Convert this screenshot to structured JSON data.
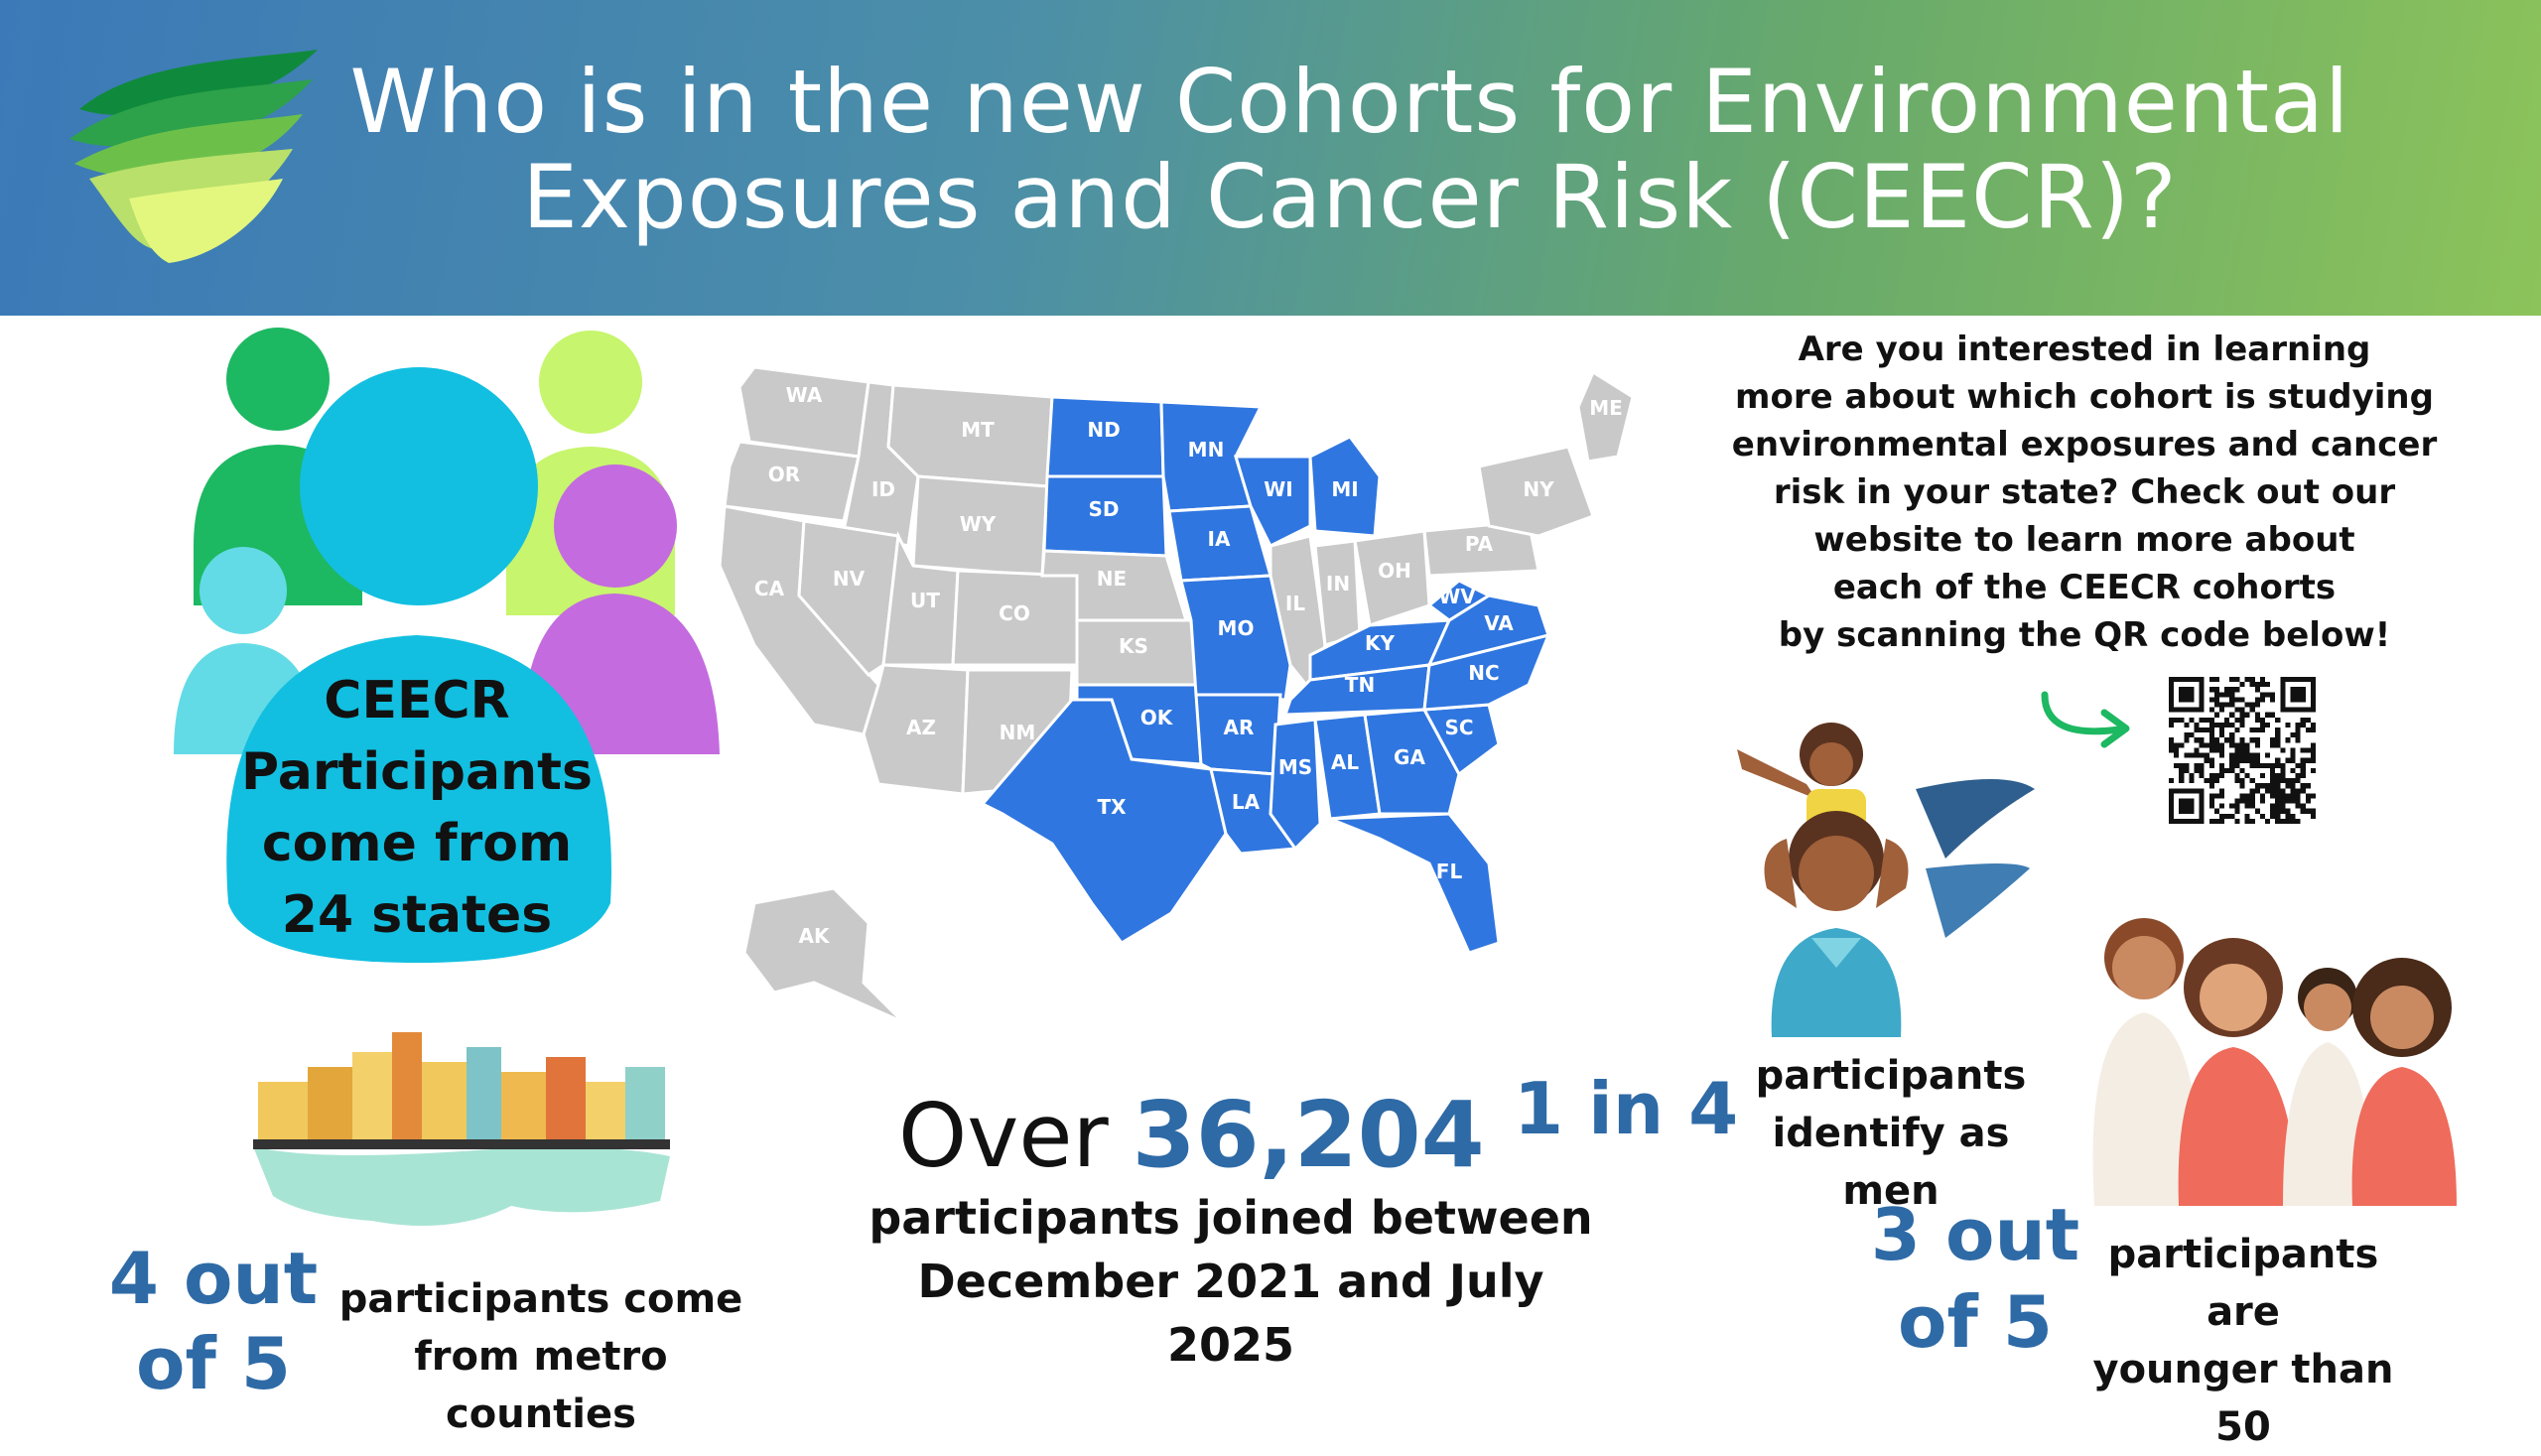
{
  "header": {
    "title_line1": "Who is in the new Cohorts for Environmental",
    "title_line2": "Exposures and Cancer Risk (CEECR)?"
  },
  "participants_box": {
    "line1": "CEECR",
    "line2": "Participants",
    "line3": "come from",
    "line4": "24 states"
  },
  "map": {
    "states": [
      "WA",
      "OR",
      "CA",
      "ID",
      "NV",
      "MT",
      "WY",
      "UT",
      "AZ",
      "CO",
      "NM",
      "ND",
      "SD",
      "NE",
      "KS",
      "OK",
      "TX",
      "MN",
      "IA",
      "MO",
      "AR",
      "LA",
      "WI",
      "IL",
      "MI",
      "IN",
      "OH",
      "KY",
      "TN",
      "MS",
      "AL",
      "GA",
      "FL",
      "SC",
      "NC",
      "VA",
      "WV",
      "PA",
      "NY",
      "ME",
      "AK"
    ],
    "highlighted_states": [
      "ND",
      "SD",
      "OK",
      "TX",
      "MN",
      "IA",
      "MO",
      "AR",
      "LA",
      "WI",
      "MI",
      "KY",
      "TN",
      "MS",
      "AL",
      "GA",
      "FL",
      "SC",
      "NC",
      "VA",
      "WV"
    ],
    "highlight_color": "#2f76e0",
    "base_color": "#c9c9c9"
  },
  "info": {
    "lines": [
      "Are you interested in learning",
      "more about which cohort is studying",
      "environmental exposures and cancer",
      "risk in your state? Check out our",
      "website to learn more about",
      "each of the CEECR cohorts",
      "by scanning the QR code below!"
    ]
  },
  "stats": {
    "over_word": "Over",
    "total": "36,204",
    "joined_line1": "participants joined between",
    "joined_line2": "December 2021 and July 2025",
    "men_ratio": "1 in 4",
    "men_line1": "participants",
    "men_line2": "identify as men",
    "young_ratio_line1": "3 out",
    "young_ratio_line2": "of 5",
    "young_line1": "participants are",
    "young_line2": "younger than 50",
    "metro_ratio_line1": "4 out",
    "metro_ratio_line2": "of 5",
    "metro_line1": "participants come",
    "metro_line2": "from metro counties"
  },
  "colors": {
    "accent_blue": "#2e6aa6",
    "map_blue": "#2f76e0"
  }
}
